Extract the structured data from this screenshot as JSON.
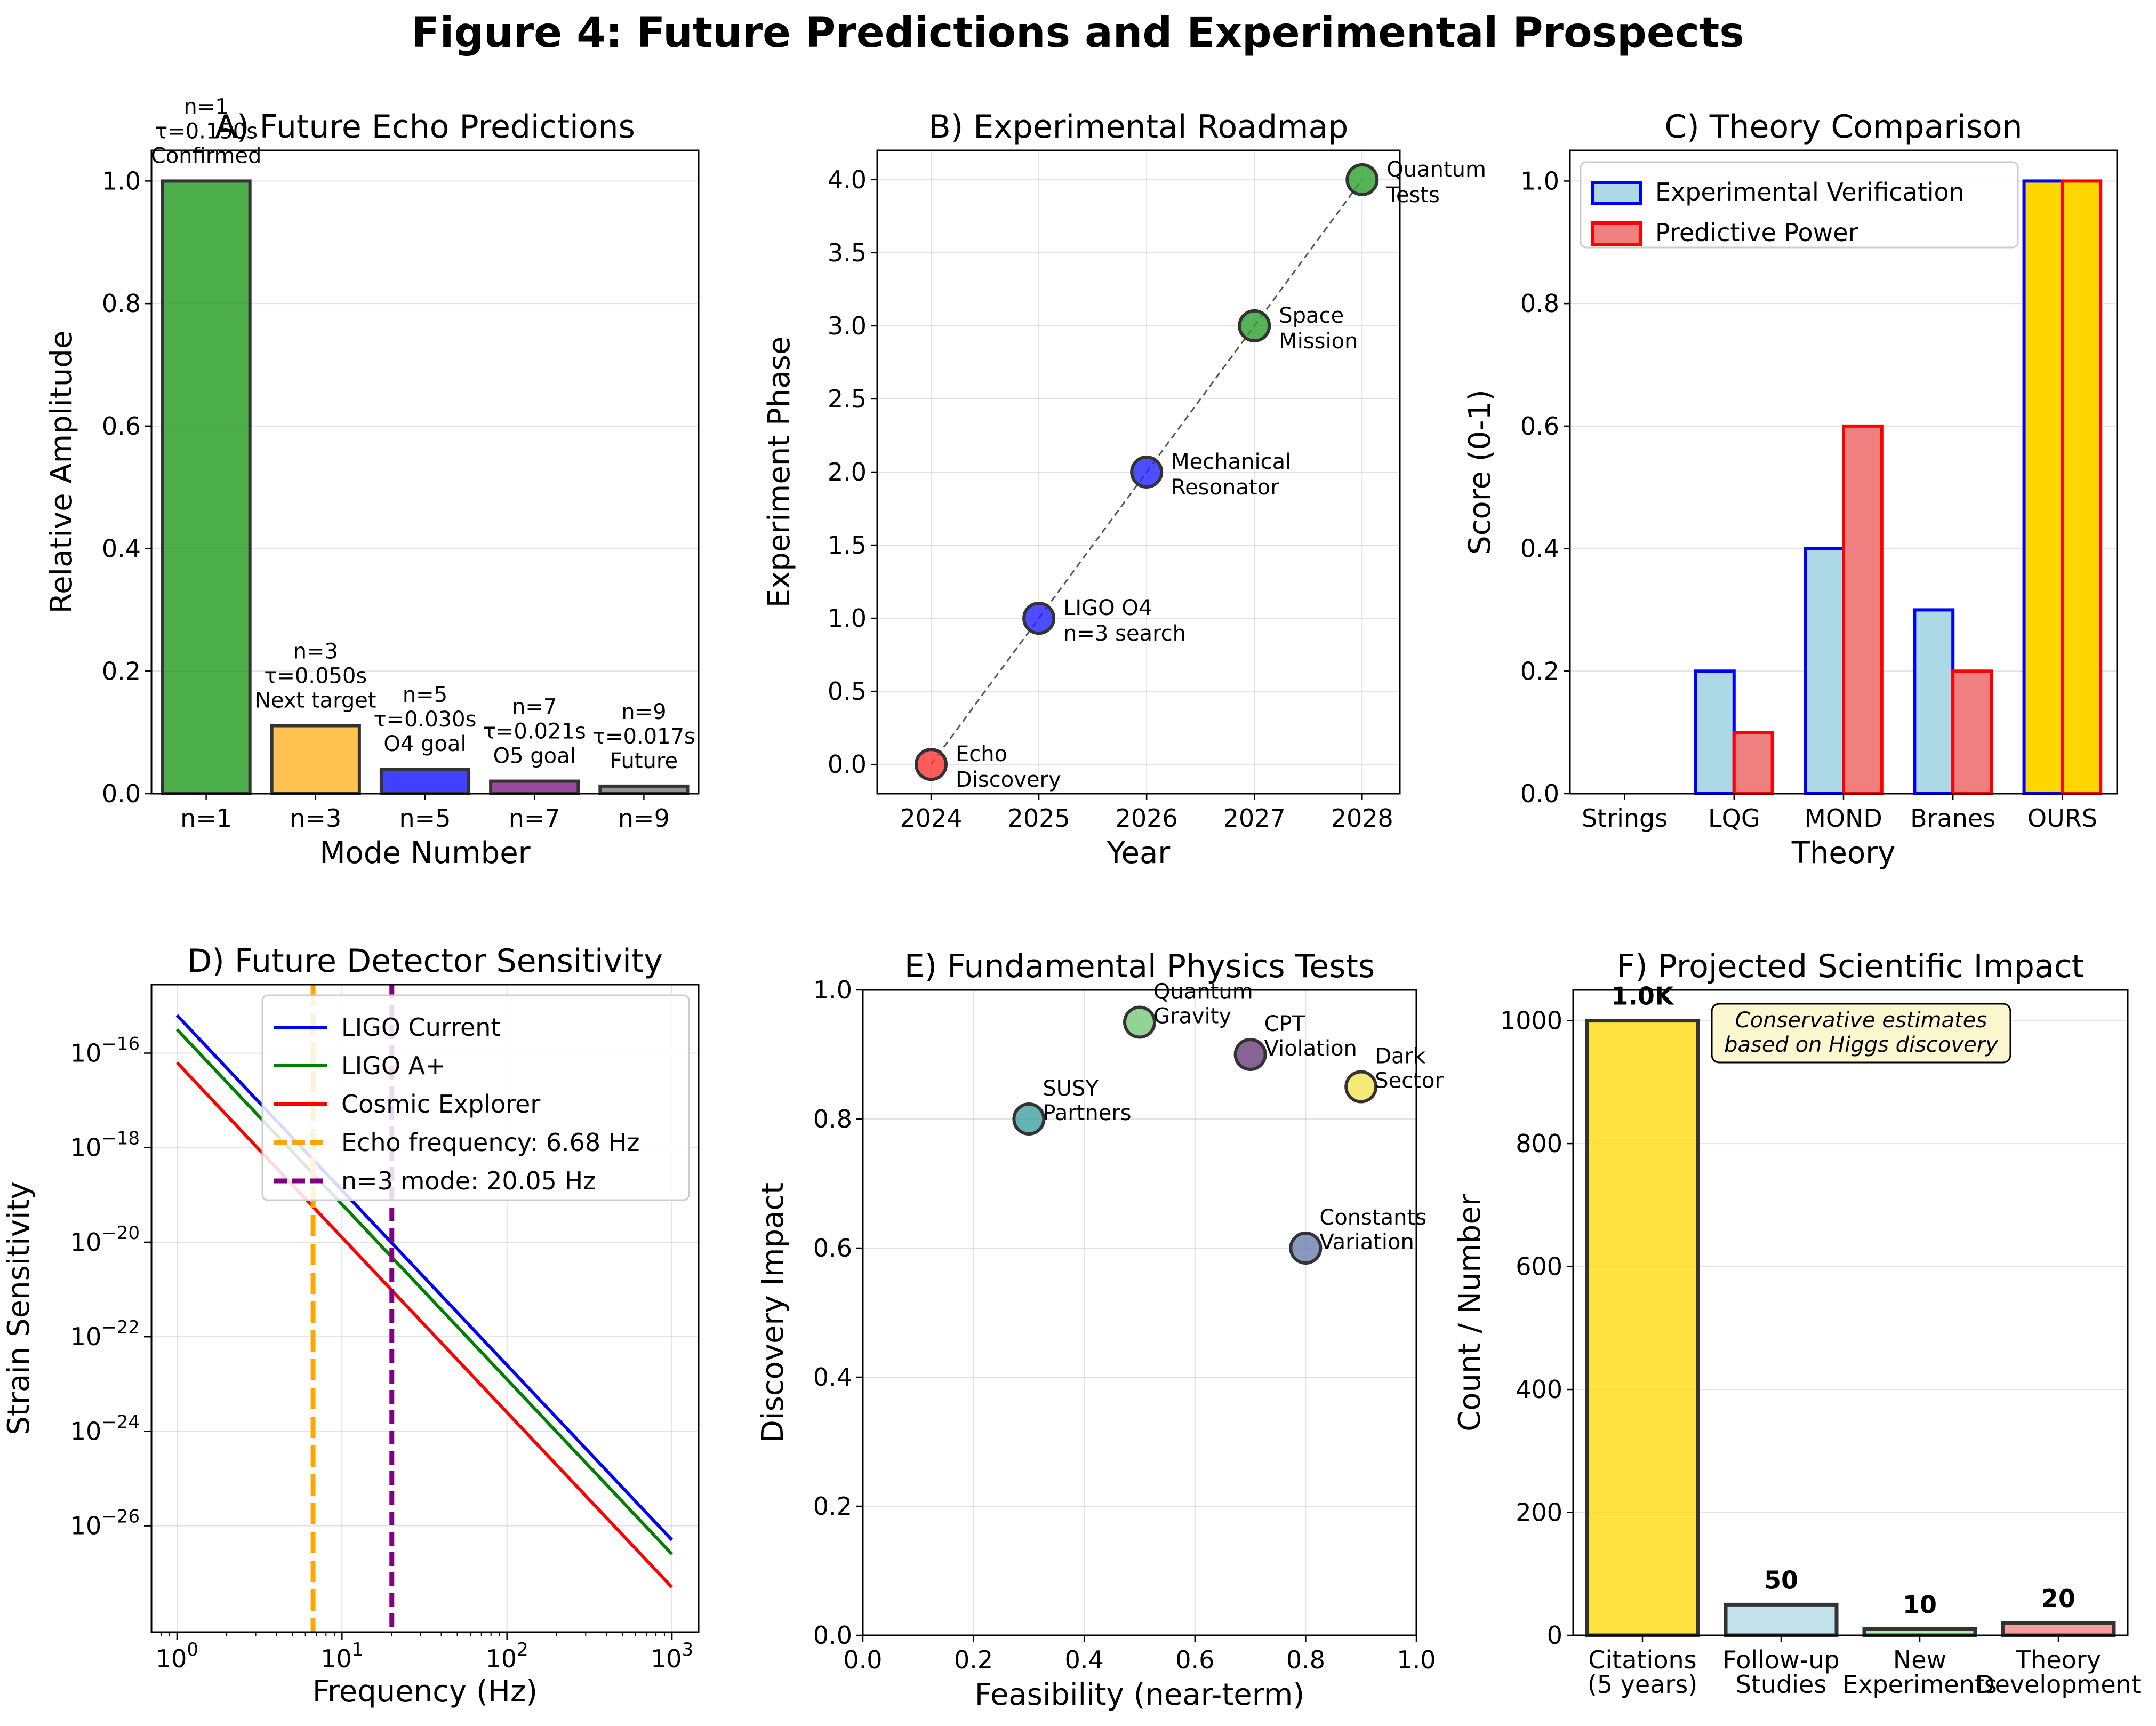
{
  "figure_title": "Figure 4: Future Predictions and Experimental Prospects",
  "chart_data": [
    {
      "id": "A",
      "type": "bar",
      "title": "A) Future Echo Predictions",
      "xlabel": "Mode Number",
      "ylabel": "Relative Amplitude",
      "categories": [
        "n=1",
        "n=3",
        "n=5",
        "n=7",
        "n=9"
      ],
      "values": [
        1.0,
        0.111,
        0.04,
        0.0204,
        0.0123
      ],
      "colors": [
        "#2ca02c",
        "#ffb733",
        "#1f1fff",
        "#8b2b8b",
        "#808080"
      ],
      "labels": [
        [
          "n=1",
          "τ=0.150s",
          "Confirmed"
        ],
        [
          "n=3",
          "τ=0.050s",
          "Next target"
        ],
        [
          "n=5",
          "τ=0.030s",
          "O4 goal"
        ],
        [
          "n=7",
          "τ=0.021s",
          "O5 goal"
        ],
        [
          "n=9",
          "τ=0.017s",
          "Future"
        ]
      ],
      "ylim": [
        0,
        1.05
      ],
      "yticks": [
        "0.0",
        "0.2",
        "0.4",
        "0.6",
        "0.8",
        "1.0"
      ],
      "grid": true
    },
    {
      "id": "B",
      "type": "scatter",
      "title": "B) Experimental Roadmap",
      "xlabel": "Year",
      "ylabel": "Experiment Phase",
      "x": [
        2024,
        2025,
        2026,
        2027,
        2028
      ],
      "y": [
        0,
        1,
        2,
        3,
        4
      ],
      "colors": [
        "#ff3333",
        "#2222ff",
        "#2222ff",
        "#2ca02c",
        "#2ca02c"
      ],
      "labels": [
        [
          "Echo",
          "Discovery"
        ],
        [
          "LIGO O4",
          "n=3 search"
        ],
        [
          "Mechanical",
          "Resonator"
        ],
        [
          "Space",
          "Mission"
        ],
        [
          "Quantum",
          "Tests"
        ]
      ],
      "xlim": [
        2023.5,
        2028.35
      ],
      "ylim": [
        -0.2,
        4.2
      ],
      "xticks": [
        "2024",
        "2025",
        "2026",
        "2027",
        "2028"
      ],
      "yticks": [
        "0.0",
        "0.5",
        "1.0",
        "1.5",
        "2.0",
        "2.5",
        "3.0",
        "3.5",
        "4.0"
      ],
      "grid": true
    },
    {
      "id": "C",
      "type": "bar",
      "title": "C) Theory Comparison",
      "xlabel": "Theory",
      "ylabel": "Score (0-1)",
      "categories": [
        "Strings",
        "LQG",
        "MOND",
        "Branes",
        "OURS"
      ],
      "series": [
        {
          "name": "Experimental Verification",
          "values": [
            0.0,
            0.2,
            0.4,
            0.3,
            1.0
          ],
          "fill": "#add8e6",
          "edge": "#0000ff"
        },
        {
          "name": "Predictive Power",
          "values": [
            0.0,
            0.1,
            0.6,
            0.2,
            1.0
          ],
          "fill": "#f08080",
          "edge": "#ff0000"
        }
      ],
      "highlight": {
        "category": "OURS",
        "fill": "#ffd700"
      },
      "ylim": [
        0,
        1.05
      ],
      "yticks": [
        "0.0",
        "0.2",
        "0.4",
        "0.6",
        "0.8",
        "1.0"
      ],
      "legend": "top-left",
      "grid": true
    },
    {
      "id": "D",
      "type": "line",
      "title": "D) Future Detector Sensitivity",
      "xlabel": "Frequency (Hz)",
      "ylabel": "Strain Sensitivity",
      "xscale": "log",
      "yscale": "log",
      "xlim": [
        0.7,
        1450
      ],
      "ylim_exp": [
        -28.25,
        -14.55
      ],
      "xticks": [
        {
          "base": "10",
          "exp": "0"
        },
        {
          "base": "10",
          "exp": "1"
        },
        {
          "base": "10",
          "exp": "2"
        },
        {
          "base": "10",
          "exp": "3"
        }
      ],
      "yticks": [
        {
          "base": "10",
          "exp": "−16"
        },
        {
          "base": "10",
          "exp": "−18"
        },
        {
          "base": "10",
          "exp": "−20"
        },
        {
          "base": "10",
          "exp": "−22"
        },
        {
          "base": "10",
          "exp": "−24"
        },
        {
          "base": "10",
          "exp": "−26"
        }
      ],
      "series": [
        {
          "name": "LIGO Current",
          "color": "#0000ff",
          "log10_at_1Hz": -15.2,
          "log10_at_1000Hz": -26.3
        },
        {
          "name": "LIGO A+",
          "color": "#008000",
          "log10_at_1Hz": -15.5,
          "log10_at_1000Hz": -26.6
        },
        {
          "name": "Cosmic Explorer",
          "color": "#ff0000",
          "log10_at_1Hz": -16.2,
          "log10_at_1000Hz": -27.3
        }
      ],
      "vlines": [
        {
          "name": "Echo frequency: 6.68 Hz",
          "x": 6.68,
          "color": "#ffa500",
          "dash": "40,14"
        },
        {
          "name": "n=3 mode: 20.05 Hz",
          "x": 20.05,
          "color": "#800080",
          "dash": "26,12"
        }
      ],
      "legend": "top-right",
      "grid": true
    },
    {
      "id": "E",
      "type": "scatter",
      "title": "E) Fundamental Physics Tests",
      "xlabel": "Feasibility (near-term)",
      "ylabel": "Discovery Impact",
      "points": [
        {
          "x": 0.3,
          "y": 0.8,
          "label": [
            "SUSY",
            "Partners"
          ],
          "color": "#40a0a0"
        },
        {
          "x": 0.5,
          "y": 0.95,
          "label": [
            "Quantum",
            "Gravity"
          ],
          "color": "#78c878"
        },
        {
          "x": 0.7,
          "y": 0.9,
          "label": [
            "CPT",
            "Violation"
          ],
          "color": "#6a3d7a"
        },
        {
          "x": 0.9,
          "y": 0.85,
          "label": [
            "Dark",
            "Sector"
          ],
          "color": "#f2e552"
        },
        {
          "x": 0.8,
          "y": 0.6,
          "label": [
            "Constants",
            "Variation"
          ],
          "color": "#6a7fb0"
        }
      ],
      "xlim": [
        0,
        1
      ],
      "ylim": [
        0,
        1
      ],
      "xticks": [
        "0.0",
        "0.2",
        "0.4",
        "0.6",
        "0.8",
        "1.0"
      ],
      "yticks": [
        "0.0",
        "0.2",
        "0.4",
        "0.6",
        "0.8",
        "1.0"
      ],
      "grid": true
    },
    {
      "id": "F",
      "type": "bar",
      "title": "F) Projected Scientific Impact",
      "ylabel": "Count / Number",
      "categories": [
        [
          "Citations",
          "(5 years)"
        ],
        [
          "Follow-up",
          "Studies"
        ],
        [
          "New",
          "Experiments"
        ],
        [
          "Theory",
          "Development"
        ]
      ],
      "values": [
        1000,
        50,
        10,
        20
      ],
      "value_labels": [
        "1.0K",
        "50",
        "10",
        "20"
      ],
      "colors": [
        "#ffd700",
        "#add8e6",
        "#90ee90",
        "#f08080"
      ],
      "ylim": [
        0,
        1050
      ],
      "yticks": [
        "0",
        "200",
        "400",
        "600",
        "800",
        "1000"
      ],
      "note": [
        "Conservative estimates",
        "based on Higgs discovery"
      ],
      "grid": true
    }
  ]
}
